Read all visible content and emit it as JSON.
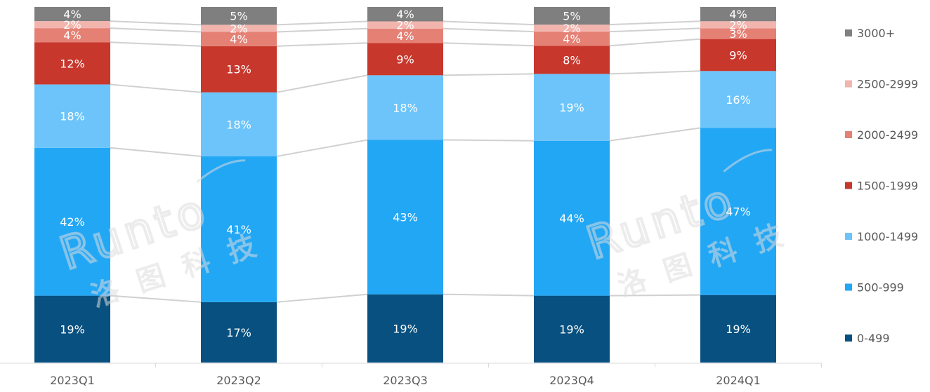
{
  "chart_data": {
    "type": "bar",
    "stacked": true,
    "normalized": true,
    "categories": [
      "2023Q1",
      "2023Q2",
      "2023Q3",
      "2023Q4",
      "2024Q1"
    ],
    "series": [
      {
        "name": "0-499",
        "color": "#08507F",
        "values": [
          19,
          17,
          19,
          19,
          19
        ],
        "labels": [
          "19%",
          "17%",
          "19%",
          "19%",
          "19%"
        ]
      },
      {
        "name": "500-999",
        "color": "#22A7F5",
        "values": [
          42,
          41,
          43,
          44,
          47
        ],
        "labels": [
          "42%",
          "41%",
          "43%",
          "44%",
          "47%"
        ]
      },
      {
        "name": "1000-1499",
        "color": "#6CC4FA",
        "values": [
          18,
          18,
          18,
          19,
          16
        ],
        "labels": [
          "18%",
          "18%",
          "18%",
          "19%",
          "16%"
        ]
      },
      {
        "name": "1500-1999",
        "color": "#C8372C",
        "values": [
          12,
          13,
          9,
          8,
          9
        ],
        "labels": [
          "12%",
          "13%",
          "9%",
          "8%",
          "9%"
        ]
      },
      {
        "name": "2000-2499",
        "color": "#E58075",
        "values": [
          4,
          4,
          4,
          4,
          3
        ],
        "labels": [
          "4%",
          "4%",
          "4%",
          "4%",
          "3%"
        ]
      },
      {
        "name": "2500-2999",
        "color": "#F2B5AE",
        "values": [
          2,
          2,
          2,
          2,
          2
        ],
        "labels": [
          "2%",
          "2%",
          "2%",
          "2%",
          "2%"
        ]
      },
      {
        "name": "3000+",
        "color": "#7F7F7F",
        "values": [
          4,
          5,
          4,
          5,
          4
        ],
        "labels": [
          "4%",
          "5%",
          "4%",
          "5%",
          "4%"
        ]
      }
    ],
    "title": "",
    "xlabel": "",
    "ylabel": "",
    "ylim": [
      0,
      100
    ],
    "grid": false,
    "legend_position": "right",
    "connector_lines": true,
    "watermark": {
      "latin": "Runto",
      "cjk": "洛图科技"
    }
  }
}
